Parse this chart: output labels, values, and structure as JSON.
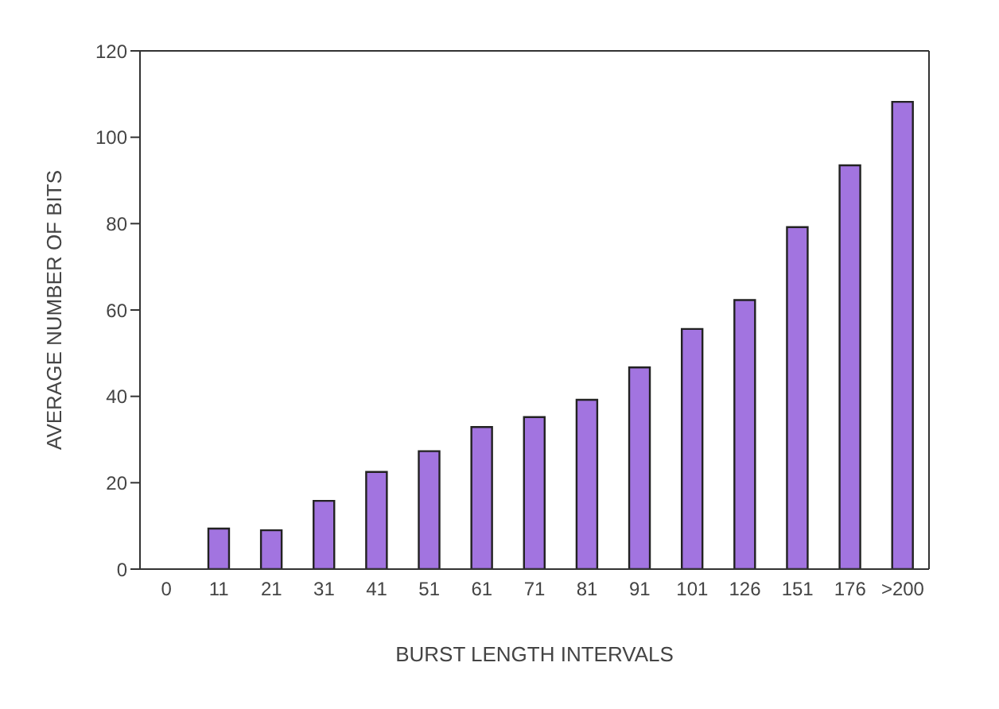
{
  "chart_data": {
    "type": "bar",
    "xlabel": "BURST LENGTH INTERVALS",
    "ylabel": "AVERAGE NUMBER OF BITS",
    "categories": [
      "0",
      "11",
      "21",
      "31",
      "41",
      "51",
      "61",
      "71",
      "81",
      "91",
      "101",
      "126",
      "151",
      "176",
      ">200"
    ],
    "values": [
      0,
      9.4,
      9.0,
      15.8,
      22.5,
      27.3,
      32.9,
      35.2,
      39.2,
      46.7,
      55.6,
      62.3,
      79.2,
      93.5,
      108.2
    ],
    "color": "#a274e0",
    "ylim": [
      0,
      120
    ],
    "yticks": [
      0,
      20,
      40,
      60,
      80,
      100,
      120
    ],
    "grid": false
  }
}
